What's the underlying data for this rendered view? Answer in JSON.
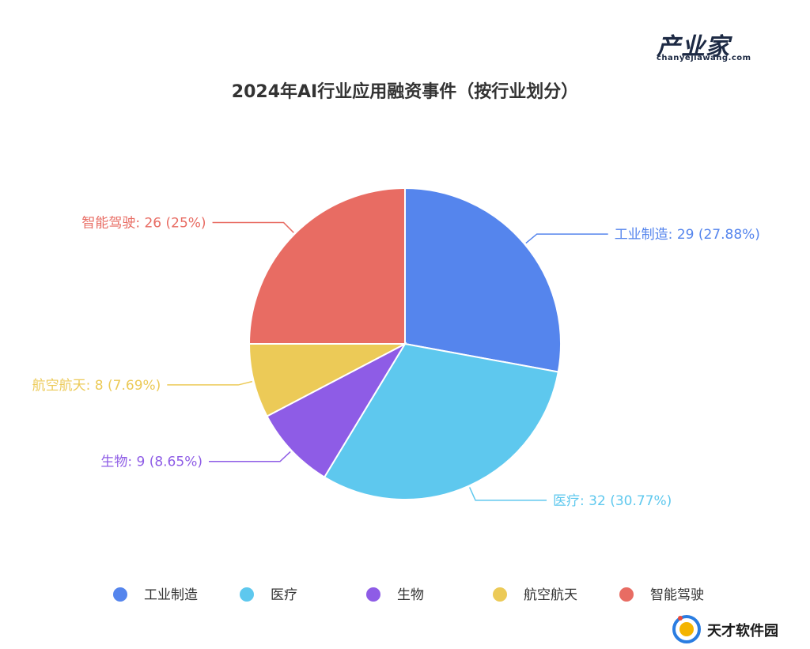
{
  "header": {
    "logo_main": "产业家",
    "logo_sub": "chanyejiawang.com",
    "title": "2024年AI行业应用融资事件（按行业划分）"
  },
  "watermark": {
    "text": "天才软件园"
  },
  "colors": {
    "工业制造": "#5585ed",
    "医疗": "#5ec8ee",
    "生物": "#8e5ce6",
    "航空航天": "#ecca57",
    "智能驾驶": "#e86c63"
  },
  "chart_data": {
    "type": "pie",
    "title": "2024年AI行业应用融资事件（按行业划分）",
    "legend_position": "bottom",
    "slices": [
      {
        "name": "工业制造",
        "value": 29,
        "percent": "27.88%",
        "label": "工业制造: 29 (27.88%)",
        "color": "#5585ed"
      },
      {
        "name": "医疗",
        "value": 32,
        "percent": "30.77%",
        "label": "医疗: 32 (30.77%)",
        "color": "#5ec8ee"
      },
      {
        "name": "生物",
        "value": 9,
        "percent": "8.65%",
        "label": "生物: 9 (8.65%)",
        "color": "#8e5ce6"
      },
      {
        "name": "航空航天",
        "value": 8,
        "percent": "7.69%",
        "label": "航空航天: 8 (7.69%)",
        "color": "#ecca57"
      },
      {
        "name": "智能驾驶",
        "value": 26,
        "percent": "25%",
        "label": "智能驾驶: 26 (25%)",
        "color": "#e86c63"
      }
    ]
  }
}
